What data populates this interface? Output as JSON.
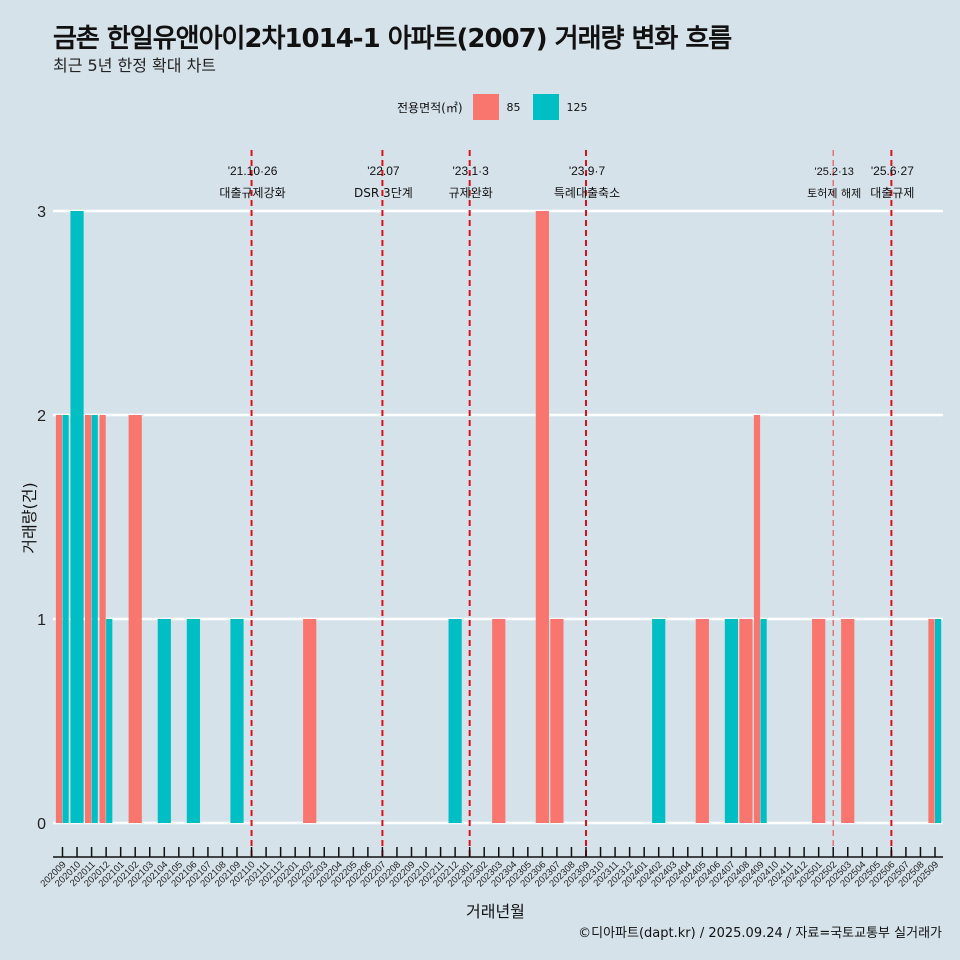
{
  "header": {
    "title": "금촌 한일유앤아이2차1014-1 아파트(2007) 거래량 변화 흐름",
    "subtitle": "최근 5년 한정 확대 차트"
  },
  "legend": {
    "title": "전용면적(㎡)",
    "items": [
      {
        "label": "85",
        "color": "#f8766d"
      },
      {
        "label": "125",
        "color": "#00bfc4"
      }
    ]
  },
  "footer": "©디아파트(dapt.kr) / 2025.09.24 / 자료=국토교통부 실거래가",
  "chart_data": {
    "type": "bar",
    "title": "금촌 한일유앤아이2차1014-1 아파트(2007) 거래량 변화 흐름",
    "subtitle": "최근 5년 한정 확대 차트",
    "xlabel": "거래년월",
    "ylabel": "거래량(건)",
    "ylim": [
      0,
      3
    ],
    "yticks": [
      0,
      1,
      2,
      3
    ],
    "grid": "horizontal",
    "legend_position": "top",
    "categories": [
      "202009",
      "202010",
      "202011",
      "202012",
      "202101",
      "202102",
      "202103",
      "202104",
      "202105",
      "202106",
      "202107",
      "202108",
      "202109",
      "202110",
      "202111",
      "202112",
      "202201",
      "202202",
      "202203",
      "202204",
      "202205",
      "202206",
      "202207",
      "202208",
      "202209",
      "202210",
      "202211",
      "202212",
      "202301",
      "202302",
      "202303",
      "202304",
      "202305",
      "202306",
      "202307",
      "202308",
      "202309",
      "202310",
      "202311",
      "202312",
      "202401",
      "202402",
      "202403",
      "202404",
      "202405",
      "202406",
      "202407",
      "202408",
      "202409",
      "202410",
      "202411",
      "202412",
      "202501",
      "202502",
      "202503",
      "202504",
      "202505",
      "202506",
      "202507",
      "202508",
      "202509"
    ],
    "series": [
      {
        "name": "85",
        "color": "#f8766d",
        "points": [
          [
            "202009",
            2
          ],
          [
            "202011",
            2
          ],
          [
            "202012",
            2
          ],
          [
            "202102",
            2
          ],
          [
            "202202",
            1
          ],
          [
            "202303",
            1
          ],
          [
            "202306",
            3
          ],
          [
            "202307",
            1
          ],
          [
            "202405",
            1
          ],
          [
            "202408",
            1
          ],
          [
            "202409",
            2
          ],
          [
            "202501",
            1
          ],
          [
            "202503",
            1
          ],
          [
            "202509",
            1
          ]
        ]
      },
      {
        "name": "125",
        "color": "#00bfc4",
        "points": [
          [
            "202009",
            2
          ],
          [
            "202010",
            3
          ],
          [
            "202011",
            2
          ],
          [
            "202012",
            1
          ],
          [
            "202104",
            1
          ],
          [
            "202106",
            1
          ],
          [
            "202109",
            1
          ],
          [
            "202212",
            1
          ],
          [
            "202402",
            1
          ],
          [
            "202407",
            1
          ],
          [
            "202409",
            1
          ],
          [
            "202509",
            1
          ]
        ]
      }
    ],
    "annotations": [
      {
        "month": "202110",
        "date": "'21.10·26",
        "label": "대출규제강화",
        "style": "bold"
      },
      {
        "month": "202207",
        "date": "'22.07",
        "label": "DSR 3단계",
        "style": "bold"
      },
      {
        "month": "202301",
        "date": "'23.1·3",
        "label": "규제완화",
        "style": "bold"
      },
      {
        "month": "202309",
        "date": "'23.9·7",
        "label": "특례대출축소",
        "style": "bold"
      },
      {
        "month": "202502",
        "date": "'25.2·13",
        "label": "토허제 해제",
        "style": "light"
      },
      {
        "month": "202506",
        "date": "'25.6·27",
        "label": "대출규제",
        "style": "bold"
      }
    ]
  }
}
